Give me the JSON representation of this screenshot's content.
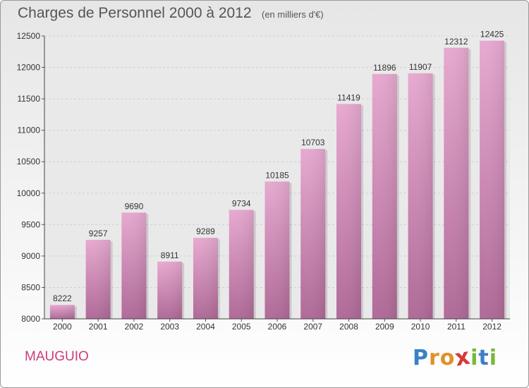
{
  "chart_data": {
    "type": "bar",
    "title": "Charges de Personnel 2000 à 2012",
    "subtitle": "(en milliers d'€)",
    "categories": [
      "2000",
      "2001",
      "2002",
      "2003",
      "2004",
      "2005",
      "2006",
      "2007",
      "2008",
      "2009",
      "2010",
      "2011",
      "2012"
    ],
    "values": [
      8222,
      9257,
      9690,
      8911,
      9289,
      9734,
      10185,
      10703,
      11419,
      11896,
      11907,
      12312,
      12425
    ],
    "ylim": [
      8000,
      12500
    ],
    "yticks": [
      8000,
      8500,
      9000,
      9500,
      10000,
      10500,
      11000,
      11500,
      12000,
      12500
    ],
    "grid": true,
    "bar_color": "#d98bbd"
  },
  "footer": {
    "city": "MAUGUIO",
    "logo_letters": [
      "P",
      "r",
      "o",
      "x",
      "i",
      "t",
      "i"
    ],
    "logo_colors": [
      "#3c7fc9",
      "#e0902a",
      "#e0902a",
      "#d63a3a",
      "#79b83a",
      "#3c7fc9",
      "#79b83a"
    ]
  },
  "colors": {
    "city": "#cc3c7a",
    "axis_text": "#333333"
  }
}
